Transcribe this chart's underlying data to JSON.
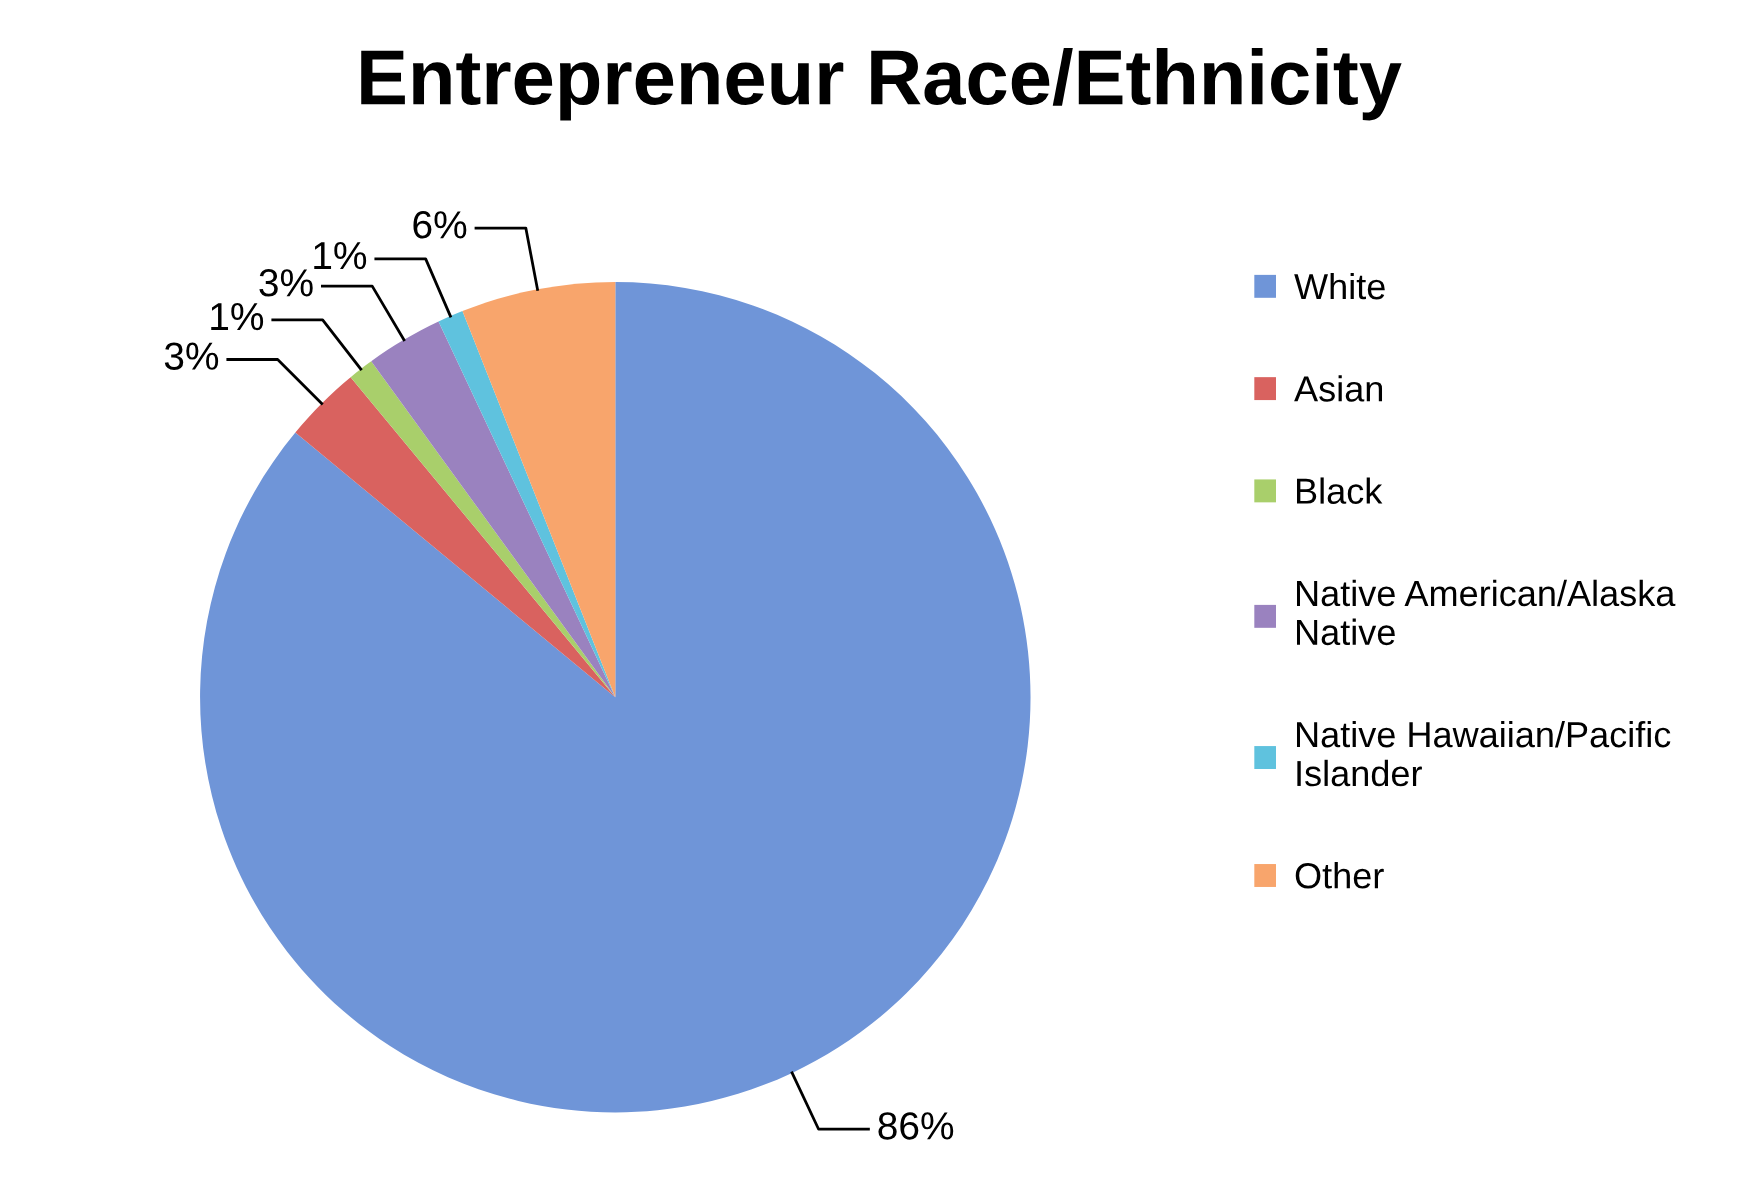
{
  "chart_data": {
    "type": "pie",
    "title": "Entrepreneur Race/Ethnicity",
    "categories": [
      "White",
      "Asian",
      "Black",
      "Native American/Alaska Native",
      "Native Hawaiian/Pacific Islander",
      "Other"
    ],
    "values": [
      86,
      3,
      1,
      3,
      1,
      6
    ],
    "colors": [
      "#6f95d8",
      "#d9625f",
      "#a9cf6b",
      "#9a82bf",
      "#5fc2de",
      "#f8a56c"
    ],
    "value_labels": [
      "86%",
      "3%",
      "1%",
      "3%",
      "1%",
      "6%"
    ],
    "legend": "right"
  }
}
